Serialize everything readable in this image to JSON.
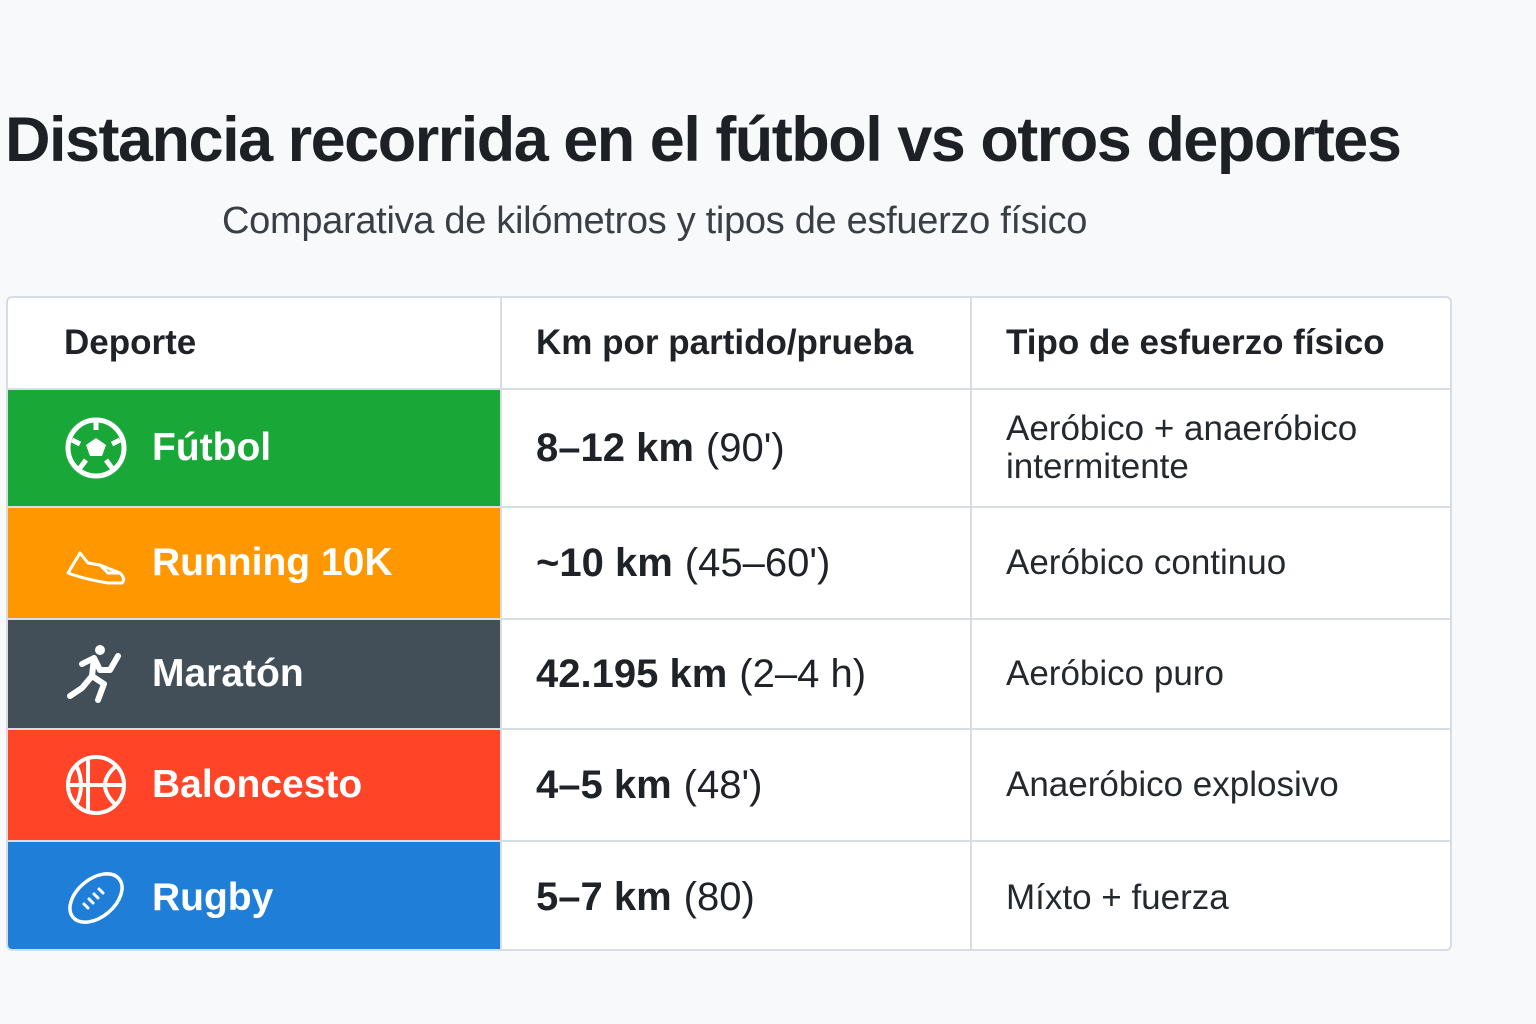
{
  "title": "Distancia recorrida en el fútbol vs otros deportes",
  "subtitle": "Comparativa de kilómetros y tipos de esfuerzo físico",
  "table": {
    "headers": [
      "Deporte",
      "Km por partido/prueba",
      "Tipo de esfuerzo físico"
    ],
    "rows": [
      {
        "sport": "Fútbol",
        "icon": "soccer-ball-icon",
        "color": "#19a838",
        "km": "8–12 km",
        "time": "(90')",
        "effort": "Aeróbico + anaeróbico intermitente"
      },
      {
        "sport": "Running 10K",
        "icon": "running-shoe-icon",
        "color": "#ff9800",
        "km": "~10 km",
        "time": "(45–60')",
        "effort": "Aeróbico continuo"
      },
      {
        "sport": "Maratón",
        "icon": "runner-icon",
        "color": "#424f58",
        "km": "42.195 km",
        "time": "(2–4 h)",
        "effort": "Aeróbico puro"
      },
      {
        "sport": "Baloncesto",
        "icon": "basketball-icon",
        "color": "#ff4427",
        "km": "4–5 km",
        "time": "(48')",
        "effort": "Anaeróbico explosivo"
      },
      {
        "sport": "Rugby",
        "icon": "rugby-ball-icon",
        "color": "#1f7fd8",
        "km": "5–7 km",
        "time": "(80)",
        "effort": "Míxto + fuerza"
      }
    ]
  }
}
